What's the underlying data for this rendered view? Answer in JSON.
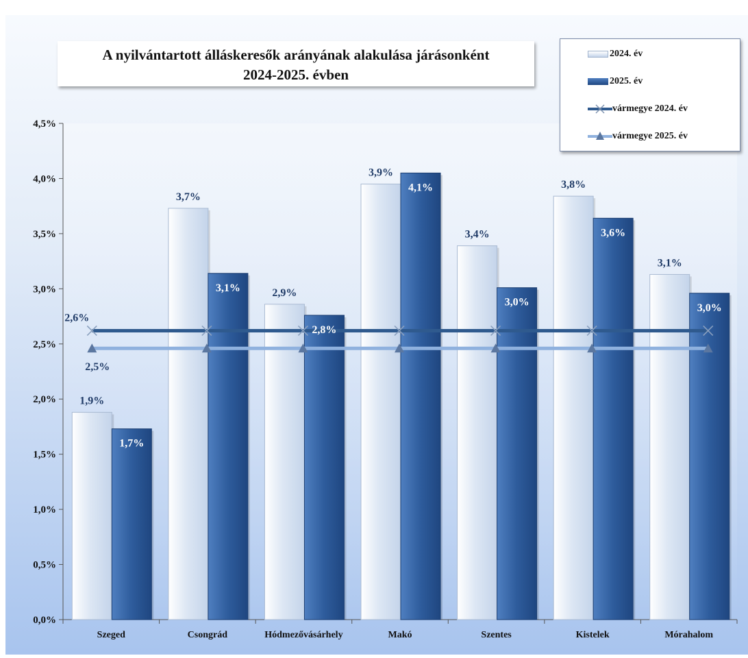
{
  "chart_data": {
    "type": "bar",
    "title_lines": [
      "A nyilvántartott álláskeresők arányának alakulása járásonként",
      "2024-2025. évben"
    ],
    "categories": [
      "Szeged",
      "Csongrád",
      "Hódmezővásárhely",
      "Makó",
      "Szentes",
      "Kistelek",
      "Mórahalom"
    ],
    "series": [
      {
        "name": "2024. év",
        "values": [
          1.88,
          3.73,
          2.86,
          3.95,
          3.39,
          3.84,
          3.13
        ],
        "labels": [
          "1,9%",
          "3,7%",
          "2,9%",
          "3,9%",
          "3,4%",
          "3,8%",
          "3,1%"
        ]
      },
      {
        "name": "2025. év",
        "values": [
          1.73,
          3.14,
          2.76,
          4.05,
          3.01,
          3.64,
          2.96
        ],
        "labels": [
          "1,7%",
          "3,1%",
          "2,8%",
          "4,1%",
          "3,0%",
          "3,6%",
          "3,0%"
        ]
      }
    ],
    "lines": [
      {
        "name": "vármegye 2024. év",
        "value": 2.62,
        "label": "2,6%",
        "marker": "x-marker"
      },
      {
        "name": "vármegye 2025. év",
        "value": 2.46,
        "label": "2,5%",
        "marker": "triangle-marker"
      }
    ],
    "ylim": [
      0,
      4.5
    ],
    "yticks": [
      0,
      0.5,
      1.0,
      1.5,
      2.0,
      2.5,
      3.0,
      3.5,
      4.0,
      4.5
    ],
    "ytick_labels": [
      "0,0%",
      "0,5%",
      "1,0%",
      "1,5%",
      "2,0%",
      "2,5%",
      "3,0%",
      "3,5%",
      "4,0%",
      "4,5%"
    ],
    "xlabel": "",
    "ylabel": "",
    "grid": false,
    "legend_position": "top-right",
    "colors": {
      "bar_2024": "#d6e2f1",
      "bar_2025": "#2e5c9c",
      "line_2024": "#2f5a8e",
      "line_2025": "#8fb1de",
      "background_top": "#f7fafe",
      "background_bottom": "#a8c4ee"
    }
  }
}
